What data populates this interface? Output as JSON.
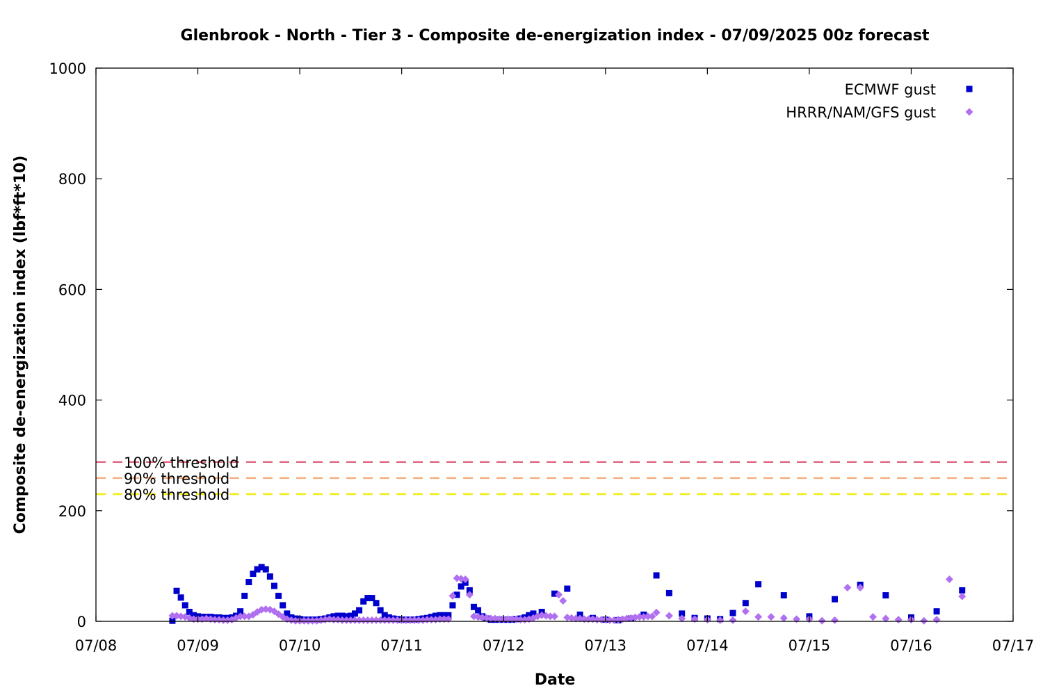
{
  "chart_data": {
    "type": "scatter",
    "title": "Glenbrook - North - Tier 3 - Composite de-energization index - 07/09/2025 00z forecast",
    "xlabel": "Date",
    "ylabel": "Composite de-energization index (lbf*ft*10)",
    "xlim": [
      "07/08 00:00",
      "07/17 00:00"
    ],
    "ylim": [
      0,
      1000
    ],
    "x_ticks": [
      "07/08",
      "07/09",
      "07/10",
      "07/11",
      "07/12",
      "07/13",
      "07/14",
      "07/15",
      "07/16",
      "07/17"
    ],
    "y_ticks": [
      0,
      200,
      400,
      600,
      800,
      1000
    ],
    "grid": false,
    "legend_position": "top-right",
    "thresholds": [
      {
        "label": "100% threshold",
        "value": 288,
        "color": "#e06a85"
      },
      {
        "label": "90% threshold",
        "value": 259,
        "color": "#f6b285"
      },
      {
        "label": "80% threshold",
        "value": 230,
        "color": "#f0ee18"
      }
    ],
    "series": [
      {
        "name": "ECMWF gust",
        "marker": "square",
        "color": "#0000cc",
        "points": [
          [
            "07/08 18:00",
            1
          ],
          [
            "07/08 19:00",
            55
          ],
          [
            "07/08 20:00",
            43
          ],
          [
            "07/08 21:00",
            29
          ],
          [
            "07/08 22:00",
            17
          ],
          [
            "07/08 23:00",
            11
          ],
          [
            "07/09 00:00",
            9
          ],
          [
            "07/09 01:00",
            8
          ],
          [
            "07/09 02:00",
            8
          ],
          [
            "07/09 03:00",
            8
          ],
          [
            "07/09 04:00",
            7
          ],
          [
            "07/09 05:00",
            7
          ],
          [
            "07/09 06:00",
            6
          ],
          [
            "07/09 07:00",
            6
          ],
          [
            "07/09 08:00",
            7
          ],
          [
            "07/09 09:00",
            10
          ],
          [
            "07/09 10:00",
            18
          ],
          [
            "07/09 11:00",
            46
          ],
          [
            "07/09 12:00",
            71
          ],
          [
            "07/09 13:00",
            86
          ],
          [
            "07/09 14:00",
            94
          ],
          [
            "07/09 15:00",
            98
          ],
          [
            "07/09 16:00",
            94
          ],
          [
            "07/09 17:00",
            81
          ],
          [
            "07/09 18:00",
            64
          ],
          [
            "07/09 19:00",
            46
          ],
          [
            "07/09 20:00",
            29
          ],
          [
            "07/09 21:00",
            14
          ],
          [
            "07/09 22:00",
            7
          ],
          [
            "07/09 23:00",
            5
          ],
          [
            "07/10 00:00",
            4
          ],
          [
            "07/10 01:00",
            3
          ],
          [
            "07/10 02:00",
            3
          ],
          [
            "07/10 03:00",
            3
          ],
          [
            "07/10 04:00",
            3
          ],
          [
            "07/10 05:00",
            4
          ],
          [
            "07/10 06:00",
            5
          ],
          [
            "07/10 07:00",
            7
          ],
          [
            "07/10 08:00",
            9
          ],
          [
            "07/10 09:00",
            10
          ],
          [
            "07/10 10:00",
            10
          ],
          [
            "07/10 11:00",
            9
          ],
          [
            "07/10 12:00",
            10
          ],
          [
            "07/10 13:00",
            14
          ],
          [
            "07/10 14:00",
            20
          ],
          [
            "07/10 15:00",
            36
          ],
          [
            "07/10 16:00",
            42
          ],
          [
            "07/10 17:00",
            42
          ],
          [
            "07/10 18:00",
            33
          ],
          [
            "07/10 19:00",
            20
          ],
          [
            "07/10 20:00",
            11
          ],
          [
            "07/10 21:00",
            7
          ],
          [
            "07/10 22:00",
            5
          ],
          [
            "07/10 23:00",
            4
          ],
          [
            "07/11 00:00",
            3
          ],
          [
            "07/11 01:00",
            3
          ],
          [
            "07/11 02:00",
            3
          ],
          [
            "07/11 03:00",
            3
          ],
          [
            "07/11 04:00",
            4
          ],
          [
            "07/11 05:00",
            5
          ],
          [
            "07/11 06:00",
            6
          ],
          [
            "07/11 07:00",
            8
          ],
          [
            "07/11 08:00",
            10
          ],
          [
            "07/11 09:00",
            11
          ],
          [
            "07/11 10:00",
            11
          ],
          [
            "07/11 11:00",
            11
          ],
          [
            "07/11 12:00",
            29
          ],
          [
            "07/11 13:00",
            48
          ],
          [
            "07/11 14:00",
            63
          ],
          [
            "07/11 15:00",
            70
          ],
          [
            "07/11 16:00",
            56
          ],
          [
            "07/11 17:00",
            26
          ],
          [
            "07/11 18:00",
            20
          ],
          [
            "07/11 19:00",
            9
          ],
          [
            "07/11 20:00",
            5
          ],
          [
            "07/11 21:00",
            3
          ],
          [
            "07/11 22:00",
            3
          ],
          [
            "07/11 23:00",
            3
          ],
          [
            "07/12 00:00",
            3
          ],
          [
            "07/12 01:00",
            3
          ],
          [
            "07/12 02:00",
            3
          ],
          [
            "07/12 03:00",
            4
          ],
          [
            "07/12 04:00",
            5
          ],
          [
            "07/12 05:00",
            7
          ],
          [
            "07/12 06:00",
            11
          ],
          [
            "07/12 07:00",
            14
          ],
          [
            "07/12 09:00",
            17
          ],
          [
            "07/12 12:00",
            50
          ],
          [
            "07/12 15:00",
            59
          ],
          [
            "07/12 18:00",
            12
          ],
          [
            "07/12 21:00",
            6
          ],
          [
            "07/13 00:00",
            3
          ],
          [
            "07/13 03:00",
            2
          ],
          [
            "07/13 06:00",
            5
          ],
          [
            "07/13 09:00",
            12
          ],
          [
            "07/13 12:00",
            83
          ],
          [
            "07/13 15:00",
            51
          ],
          [
            "07/13 18:00",
            14
          ],
          [
            "07/13 21:00",
            6
          ],
          [
            "07/14 00:00",
            5
          ],
          [
            "07/14 03:00",
            4
          ],
          [
            "07/14 06:00",
            15
          ],
          [
            "07/14 09:00",
            33
          ],
          [
            "07/14 12:00",
            67
          ],
          [
            "07/14 18:00",
            47
          ],
          [
            "07/15 00:00",
            9
          ],
          [
            "07/15 06:00",
            40
          ],
          [
            "07/15 12:00",
            66
          ],
          [
            "07/15 18:00",
            47
          ],
          [
            "07/16 00:00",
            7
          ],
          [
            "07/16 06:00",
            18
          ],
          [
            "07/16 12:00",
            56
          ]
        ]
      },
      {
        "name": "HRRR/NAM/GFS gust",
        "marker": "diamond",
        "color": "#b070f0",
        "points": [
          [
            "07/08 18:00",
            10
          ],
          [
            "07/08 19:00",
            10
          ],
          [
            "07/08 20:00",
            9
          ],
          [
            "07/08 21:00",
            8
          ],
          [
            "07/08 22:00",
            6
          ],
          [
            "07/08 23:00",
            4
          ],
          [
            "07/09 00:00",
            4
          ],
          [
            "07/09 01:00",
            4
          ],
          [
            "07/09 02:00",
            5
          ],
          [
            "07/09 03:00",
            4
          ],
          [
            "07/09 04:00",
            3
          ],
          [
            "07/09 05:00",
            3
          ],
          [
            "07/09 06:00",
            2
          ],
          [
            "07/09 07:00",
            2
          ],
          [
            "07/09 08:00",
            3
          ],
          [
            "07/09 09:00",
            6
          ],
          [
            "07/09 10:00",
            9
          ],
          [
            "07/09 11:00",
            9
          ],
          [
            "07/09 12:00",
            9
          ],
          [
            "07/09 13:00",
            12
          ],
          [
            "07/09 14:00",
            17
          ],
          [
            "07/09 15:00",
            21
          ],
          [
            "07/09 16:00",
            22
          ],
          [
            "07/09 17:00",
            21
          ],
          [
            "07/09 18:00",
            18
          ],
          [
            "07/09 19:00",
            13
          ],
          [
            "07/09 20:00",
            8
          ],
          [
            "07/09 21:00",
            4
          ],
          [
            "07/09 22:00",
            2
          ],
          [
            "07/09 23:00",
            1
          ],
          [
            "07/10 00:00",
            1
          ],
          [
            "07/10 01:00",
            1
          ],
          [
            "07/10 02:00",
            1
          ],
          [
            "07/10 03:00",
            1
          ],
          [
            "07/10 04:00",
            1
          ],
          [
            "07/10 05:00",
            2
          ],
          [
            "07/10 06:00",
            3
          ],
          [
            "07/10 07:00",
            4
          ],
          [
            "07/10 08:00",
            3
          ],
          [
            "07/10 09:00",
            3
          ],
          [
            "07/10 10:00",
            2
          ],
          [
            "07/10 11:00",
            2
          ],
          [
            "07/10 12:00",
            2
          ],
          [
            "07/10 13:00",
            2
          ],
          [
            "07/10 14:00",
            2
          ],
          [
            "07/10 15:00",
            2
          ],
          [
            "07/10 16:00",
            2
          ],
          [
            "07/10 17:00",
            2
          ],
          [
            "07/10 18:00",
            2
          ],
          [
            "07/10 19:00",
            2
          ],
          [
            "07/10 20:00",
            2
          ],
          [
            "07/10 21:00",
            2
          ],
          [
            "07/10 22:00",
            2
          ],
          [
            "07/10 23:00",
            2
          ],
          [
            "07/11 00:00",
            2
          ],
          [
            "07/11 01:00",
            2
          ],
          [
            "07/11 02:00",
            2
          ],
          [
            "07/11 03:00",
            2
          ],
          [
            "07/11 04:00",
            2
          ],
          [
            "07/11 05:00",
            2
          ],
          [
            "07/11 06:00",
            3
          ],
          [
            "07/11 07:00",
            3
          ],
          [
            "07/11 08:00",
            3
          ],
          [
            "07/11 09:00",
            4
          ],
          [
            "07/11 10:00",
            4
          ],
          [
            "07/11 11:00",
            4
          ],
          [
            "07/11 12:00",
            46
          ],
          [
            "07/11 13:00",
            78
          ],
          [
            "07/11 14:00",
            77
          ],
          [
            "07/11 15:00",
            76
          ],
          [
            "07/11 16:00",
            48
          ],
          [
            "07/11 17:00",
            9
          ],
          [
            "07/11 18:00",
            8
          ],
          [
            "07/11 19:00",
            7
          ],
          [
            "07/11 20:00",
            6
          ],
          [
            "07/11 21:00",
            5
          ],
          [
            "07/11 22:00",
            5
          ],
          [
            "07/11 23:00",
            4
          ],
          [
            "07/12 00:00",
            4
          ],
          [
            "07/12 01:00",
            4
          ],
          [
            "07/12 02:00",
            4
          ],
          [
            "07/12 03:00",
            4
          ],
          [
            "07/12 04:00",
            3
          ],
          [
            "07/12 05:00",
            3
          ],
          [
            "07/12 06:00",
            4
          ],
          [
            "07/12 07:00",
            6
          ],
          [
            "07/12 08:00",
            9
          ],
          [
            "07/12 09:00",
            11
          ],
          [
            "07/12 10:00",
            10
          ],
          [
            "07/12 11:00",
            9
          ],
          [
            "07/12 12:00",
            9
          ],
          [
            "07/12 13:00",
            48
          ],
          [
            "07/12 14:00",
            37
          ],
          [
            "07/12 15:00",
            7
          ],
          [
            "07/12 16:00",
            6
          ],
          [
            "07/12 17:00",
            5
          ],
          [
            "07/12 18:00",
            5
          ],
          [
            "07/12 19:00",
            4
          ],
          [
            "07/12 20:00",
            4
          ],
          [
            "07/12 21:00",
            4
          ],
          [
            "07/12 22:00",
            3
          ],
          [
            "07/12 23:00",
            3
          ],
          [
            "07/13 00:00",
            3
          ],
          [
            "07/13 01:00",
            2
          ],
          [
            "07/13 02:00",
            2
          ],
          [
            "07/13 03:00",
            3
          ],
          [
            "07/13 04:00",
            4
          ],
          [
            "07/13 05:00",
            5
          ],
          [
            "07/13 06:00",
            6
          ],
          [
            "07/13 07:00",
            7
          ],
          [
            "07/13 08:00",
            8
          ],
          [
            "07/13 09:00",
            8
          ],
          [
            "07/13 10:00",
            9
          ],
          [
            "07/13 11:00",
            9
          ],
          [
            "07/13 12:00",
            16
          ],
          [
            "07/13 15:00",
            10
          ],
          [
            "07/13 18:00",
            5
          ],
          [
            "07/13 21:00",
            4
          ],
          [
            "07/14 00:00",
            3
          ],
          [
            "07/14 03:00",
            2
          ],
          [
            "07/14 06:00",
            2
          ],
          [
            "07/14 09:00",
            18
          ],
          [
            "07/14 12:00",
            8
          ],
          [
            "07/14 15:00",
            8
          ],
          [
            "07/14 18:00",
            6
          ],
          [
            "07/14 21:00",
            4
          ],
          [
            "07/15 00:00",
            4
          ],
          [
            "07/15 03:00",
            1
          ],
          [
            "07/15 06:00",
            2
          ],
          [
            "07/15 09:00",
            61
          ],
          [
            "07/15 12:00",
            61
          ],
          [
            "07/15 15:00",
            8
          ],
          [
            "07/15 18:00",
            5
          ],
          [
            "07/15 21:00",
            3
          ],
          [
            "07/16 00:00",
            3
          ],
          [
            "07/16 03:00",
            1
          ],
          [
            "07/16 06:00",
            3
          ],
          [
            "07/16 09:00",
            76
          ],
          [
            "07/16 12:00",
            45
          ]
        ]
      }
    ]
  }
}
